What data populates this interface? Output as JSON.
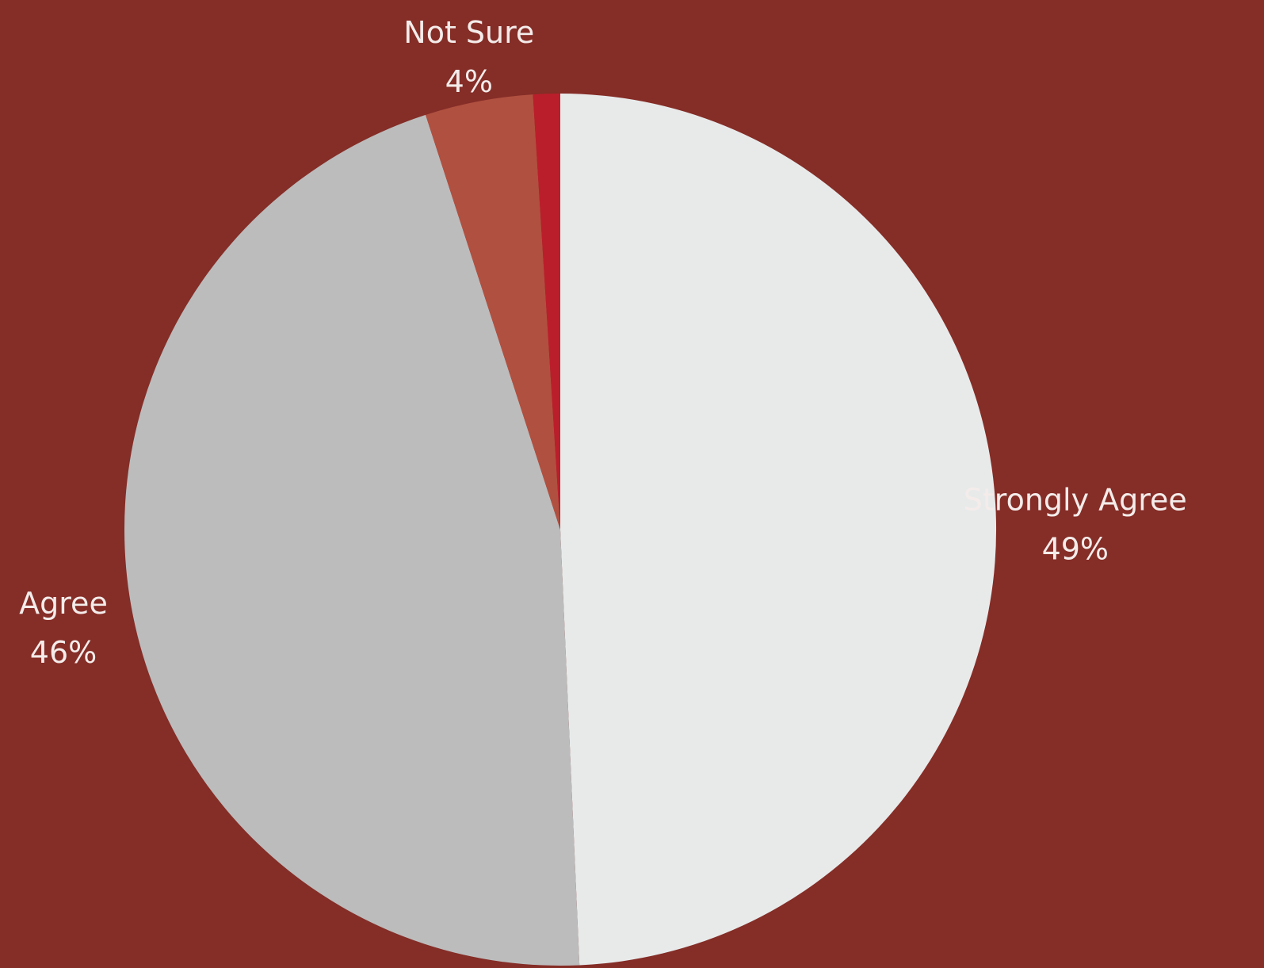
{
  "background_color": "#852d27",
  "chart_data": {
    "type": "pie",
    "start_angle_degrees": 0,
    "direction": "clockwise",
    "labels_style": "outside",
    "slices": [
      {
        "label": "Strongly Agree",
        "value_label": "49%",
        "value": 49.3,
        "color": "#e8eaea"
      },
      {
        "label": "Agree",
        "value_label": "46%",
        "value": 45.7,
        "color": "#bcbcbc"
      },
      {
        "label": "Not Sure",
        "value_label": "4%",
        "value": 4.0,
        "color": "#b05040"
      },
      {
        "label": "",
        "value_label": "",
        "value": 1.0,
        "color": "#bb1e2b"
      }
    ]
  }
}
